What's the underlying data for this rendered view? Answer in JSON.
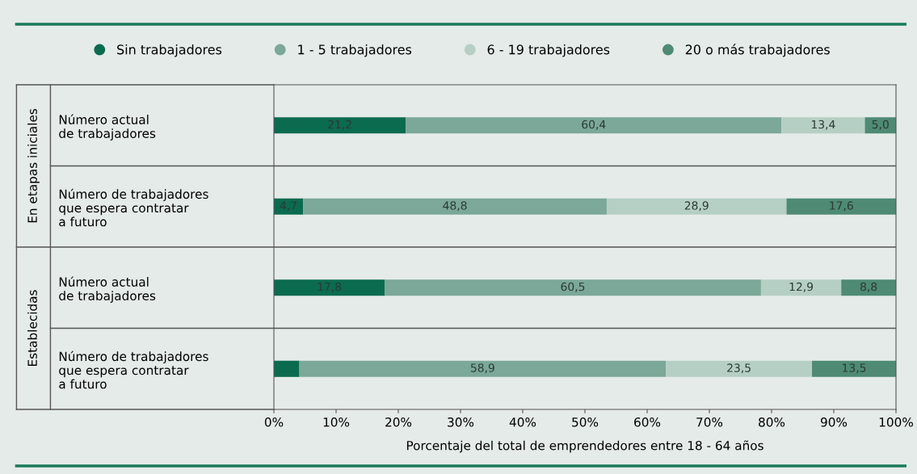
{
  "chart_data": {
    "type": "bar",
    "orientation": "horizontal",
    "stacked": true,
    "categories": [
      "Número actual\nde trabajadores",
      "Número de trabajadores\nque espera contratar\na futuro",
      "Número actual\nde trabajadores",
      "Número de trabajadores\nque espera contratar\na futuro"
    ],
    "series": [
      {
        "name": "Sin trabajadores",
        "color": "#0b6b4f",
        "values": [
          21.2,
          4.7,
          17.8,
          4.1
        ],
        "value_labels": [
          "21,2",
          "4,7",
          "17,8",
          null
        ]
      },
      {
        "name": "1 - 5 trabajadores",
        "color": "#7ba898",
        "values": [
          60.4,
          48.8,
          60.5,
          58.9
        ],
        "value_labels": [
          "60,4",
          "48,8",
          "60,5",
          "58,9"
        ]
      },
      {
        "name": "6 - 19 trabajadores",
        "color": "#b6cfc5",
        "values": [
          13.4,
          28.9,
          12.9,
          23.5
        ],
        "value_labels": [
          "13,4",
          "28,9",
          "12,9",
          "23,5"
        ]
      },
      {
        "name": "20 o más trabajadores",
        "color": "#4e8a74",
        "values": [
          5.0,
          17.6,
          8.8,
          13.5
        ],
        "value_labels": [
          "5,0",
          "17,6",
          "8,8",
          "13,5"
        ]
      }
    ],
    "xlim": [
      0,
      100
    ],
    "xticks": [
      {
        "value": 0,
        "label": "0%"
      },
      {
        "value": 10,
        "label": "10%"
      },
      {
        "value": 20,
        "label": "20%"
      },
      {
        "value": 30,
        "label": "30%"
      },
      {
        "value": 40,
        "label": "40%"
      },
      {
        "value": 50,
        "label": "50%"
      },
      {
        "value": 60,
        "label": "60%"
      },
      {
        "value": 70,
        "label": "70%"
      },
      {
        "value": 80,
        "label": "80%"
      },
      {
        "value": 90,
        "label": "90%"
      },
      {
        "value": 100,
        "label": "100%"
      }
    ],
    "xlabel": "Porcentaje del total de emprendedores entre 18 - 64 años",
    "annotations": [
      "En etapas iniciales",
      "Establecidas"
    ],
    "legend": "top",
    "grid": false
  }
}
